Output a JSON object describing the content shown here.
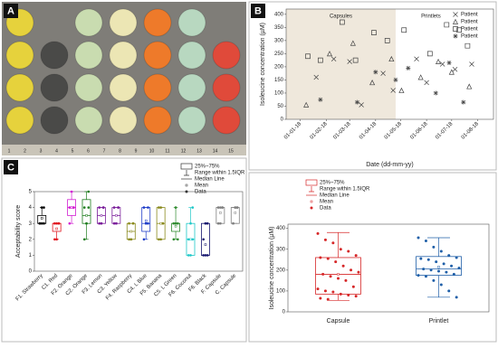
{
  "photo": {
    "label": "A",
    "ruler_labels": [
      1,
      2,
      3,
      4,
      5,
      6,
      7,
      8,
      9,
      10,
      11,
      12,
      13,
      14,
      15
    ]
  },
  "chart_data": [
    {
      "type": "scatter",
      "panel_label": "B",
      "ylabel": "Isoleucine concentration (µM)",
      "xlabel": "Date (dd-mm-yy)",
      "xlim": [
        "2017-12-15",
        "2018-08-20"
      ],
      "ylim": [
        0,
        420
      ],
      "yticks": [
        0,
        50,
        100,
        150,
        200,
        250,
        300,
        350,
        400
      ],
      "xticks": [
        {
          "value": "2018-01-01",
          "label": "01-01-18"
        },
        {
          "value": "2018-02-01",
          "label": "01-02-18"
        },
        {
          "value": "2018-03-01",
          "label": "01-03-18"
        },
        {
          "value": "2018-04-01",
          "label": "01-04-18"
        },
        {
          "value": "2018-05-01",
          "label": "01-05-18"
        },
        {
          "value": "2018-06-01",
          "label": "01-06-18"
        },
        {
          "value": "2018-07-01",
          "label": "01-07-18"
        },
        {
          "value": "2018-08-01",
          "label": "01-08-18"
        }
      ],
      "shade": {
        "range": [
          "2017-12-15",
          "2018-04-25"
        ],
        "label": "Capsules",
        "color": "#efe8dc"
      },
      "unshaded_label": "Printlets",
      "series": [
        {
          "name": "Patient",
          "marker": "x",
          "color": "#444444",
          "x": [
            "2018-01-20",
            "2018-02-10",
            "2018-03-01",
            "2018-03-15",
            "2018-04-10",
            "2018-04-22",
            "2018-05-20",
            "2018-06-01",
            "2018-06-20",
            "2018-07-05",
            "2018-07-25"
          ],
          "values": [
            160,
            230,
            220,
            55,
            175,
            110,
            230,
            140,
            210,
            190,
            210
          ]
        },
        {
          "name": "Patient",
          "marker": "triangle",
          "color": "#444444",
          "x": [
            "2018-01-08",
            "2018-02-05",
            "2018-03-05",
            "2018-03-28",
            "2018-04-20",
            "2018-05-02",
            "2018-05-25",
            "2018-06-15",
            "2018-07-01",
            "2018-07-22"
          ],
          "values": [
            55,
            250,
            290,
            140,
            230,
            110,
            160,
            220,
            180,
            125
          ]
        },
        {
          "name": "Patient",
          "marker": "square",
          "color": "#444444",
          "x": [
            "2018-01-10",
            "2018-01-25",
            "2018-02-20",
            "2018-03-08",
            "2018-03-30",
            "2018-04-15",
            "2018-05-05",
            "2018-06-05",
            "2018-06-25",
            "2018-07-10",
            "2018-07-20"
          ],
          "values": [
            240,
            225,
            370,
            225,
            330,
            300,
            340,
            250,
            360,
            340,
            280
          ]
        },
        {
          "name": "Patient",
          "marker": "asterisk",
          "color": "#444444",
          "x": [
            "2018-01-25",
            "2018-03-10",
            "2018-04-01",
            "2018-04-25",
            "2018-05-10",
            "2018-06-12",
            "2018-06-28",
            "2018-07-15"
          ],
          "values": [
            75,
            65,
            180,
            150,
            195,
            100,
            215,
            65
          ]
        }
      ]
    },
    {
      "type": "box",
      "panel_label": "C",
      "ylabel": "Acceptability score",
      "ylim": [
        0,
        5
      ],
      "yticks": [
        0,
        1,
        2,
        3,
        4,
        5
      ],
      "legend": {
        "box": "25%~75%",
        "range": "Range within 1.5IQR",
        "median": "Median Line",
        "mean": "Mean",
        "data": "Data"
      },
      "categories": [
        "F1. Strawberry",
        "C1. Red",
        "F2. Orange",
        "C2. Orange",
        "F3. Lemon",
        "C3. Yellow",
        "F4. Raspberry",
        "C4. L Blue",
        "F5. Banana",
        "C5. L Green",
        "F6. Coconut",
        "F6. Black",
        "F. Capsule",
        "C. Capsule"
      ],
      "colors": [
        "#000000",
        "#e0141e",
        "#d21ed2",
        "#1e7d1e",
        "#7a1e9a",
        "#7a1e9a",
        "#8a8a1e",
        "#1e3cc8",
        "#8a8a1e",
        "#2e8b2e",
        "#1ec8c8",
        "#14146e",
        "#808080",
        "#808080"
      ],
      "boxes": [
        {
          "min": 3,
          "q1": 3,
          "median": 3,
          "q3": 3.5,
          "max": 4,
          "mean": 3.33,
          "data": [
            3,
            3,
            3,
            3,
            4,
            4
          ]
        },
        {
          "min": 2,
          "q1": 2.5,
          "median": 3,
          "q3": 3,
          "max": 3,
          "mean": 2.67,
          "data": [
            2,
            2,
            3,
            3,
            3,
            3
          ]
        },
        {
          "min": 3,
          "q1": 3.5,
          "median": 4,
          "q3": 4.5,
          "max": 5,
          "mean": 4,
          "data": [
            3,
            4,
            4,
            4,
            5,
            4
          ]
        },
        {
          "min": 2,
          "q1": 3,
          "median": 3.5,
          "q3": 4.5,
          "max": 5,
          "mean": 3.5,
          "data": [
            2,
            3,
            4,
            4,
            3,
            5
          ]
        },
        {
          "min": 3,
          "q1": 3,
          "median": 3.5,
          "q3": 4,
          "max": 4,
          "mean": 3.5,
          "data": [
            3,
            3,
            4,
            4,
            3,
            4
          ]
        },
        {
          "min": 3,
          "q1": 3,
          "median": 3.5,
          "q3": 4,
          "max": 4,
          "mean": 3.5,
          "data": [
            3,
            3,
            4,
            4,
            3,
            4
          ]
        },
        {
          "min": 2,
          "q1": 2,
          "median": 2.5,
          "q3": 3,
          "max": 3,
          "mean": 2.5,
          "data": [
            2,
            2,
            3,
            3,
            2,
            3
          ]
        },
        {
          "min": 2,
          "q1": 2.5,
          "median": 3,
          "q3": 4,
          "max": 4,
          "mean": 3.17,
          "data": [
            2,
            3,
            3,
            4,
            3,
            4
          ]
        },
        {
          "min": 2,
          "q1": 2,
          "median": 3,
          "q3": 4,
          "max": 4,
          "mean": 3,
          "data": [
            2,
            2,
            3,
            4,
            4,
            3
          ]
        },
        {
          "min": 2,
          "q1": 2.5,
          "median": 3,
          "q3": 3,
          "max": 4,
          "mean": 2.83,
          "data": [
            2,
            3,
            3,
            3,
            4,
            2
          ]
        },
        {
          "min": 1,
          "q1": 1,
          "median": 2,
          "q3": 3,
          "max": 4,
          "mean": 2,
          "data": [
            1,
            1,
            2,
            2,
            3,
            4
          ]
        },
        {
          "min": 1,
          "q1": 1,
          "median": 1,
          "q3": 3,
          "max": 3,
          "mean": 1.67,
          "data": [
            1,
            1,
            1,
            2,
            3,
            3
          ]
        },
        {
          "min": 3,
          "q1": 3,
          "median": 4,
          "q3": 4,
          "max": 4,
          "mean": 3.67,
          "data": [
            3,
            4,
            4,
            4,
            3,
            4
          ]
        },
        {
          "min": 3,
          "q1": 3,
          "median": 4,
          "q3": 4,
          "max": 4,
          "mean": 3.67,
          "data": [
            3,
            4,
            4,
            3,
            4,
            4
          ]
        }
      ]
    },
    {
      "type": "box",
      "ylabel": "Isoleucine concentration (µM)",
      "ylim": [
        0,
        420
      ],
      "yticks": [
        0,
        100,
        200,
        300,
        400
      ],
      "legend": {
        "box": "25%~75%",
        "range": "Range within 1.5IQR",
        "median": "Median Line",
        "mean": "Mean",
        "data": "Data"
      },
      "categories": [
        "Capsule",
        "Printlet"
      ],
      "colors": [
        "#d62728",
        "#1f5fa8"
      ],
      "boxes": [
        {
          "min": 55,
          "q1": 85,
          "median": 180,
          "q3": 260,
          "max": 380,
          "mean": 180,
          "data": [
            375,
            345,
            330,
            300,
            290,
            270,
            260,
            255,
            240,
            220,
            200,
            190,
            180,
            170,
            160,
            150,
            120,
            110,
            100,
            95,
            85,
            80,
            75,
            65,
            60
          ]
        },
        {
          "min": 70,
          "q1": 175,
          "median": 205,
          "q3": 265,
          "max": 355,
          "mean": 215,
          "data": [
            355,
            340,
            310,
            290,
            270,
            260,
            255,
            250,
            240,
            230,
            220,
            210,
            205,
            200,
            195,
            190,
            180,
            175,
            170,
            150,
            130,
            100,
            70
          ]
        }
      ]
    }
  ]
}
